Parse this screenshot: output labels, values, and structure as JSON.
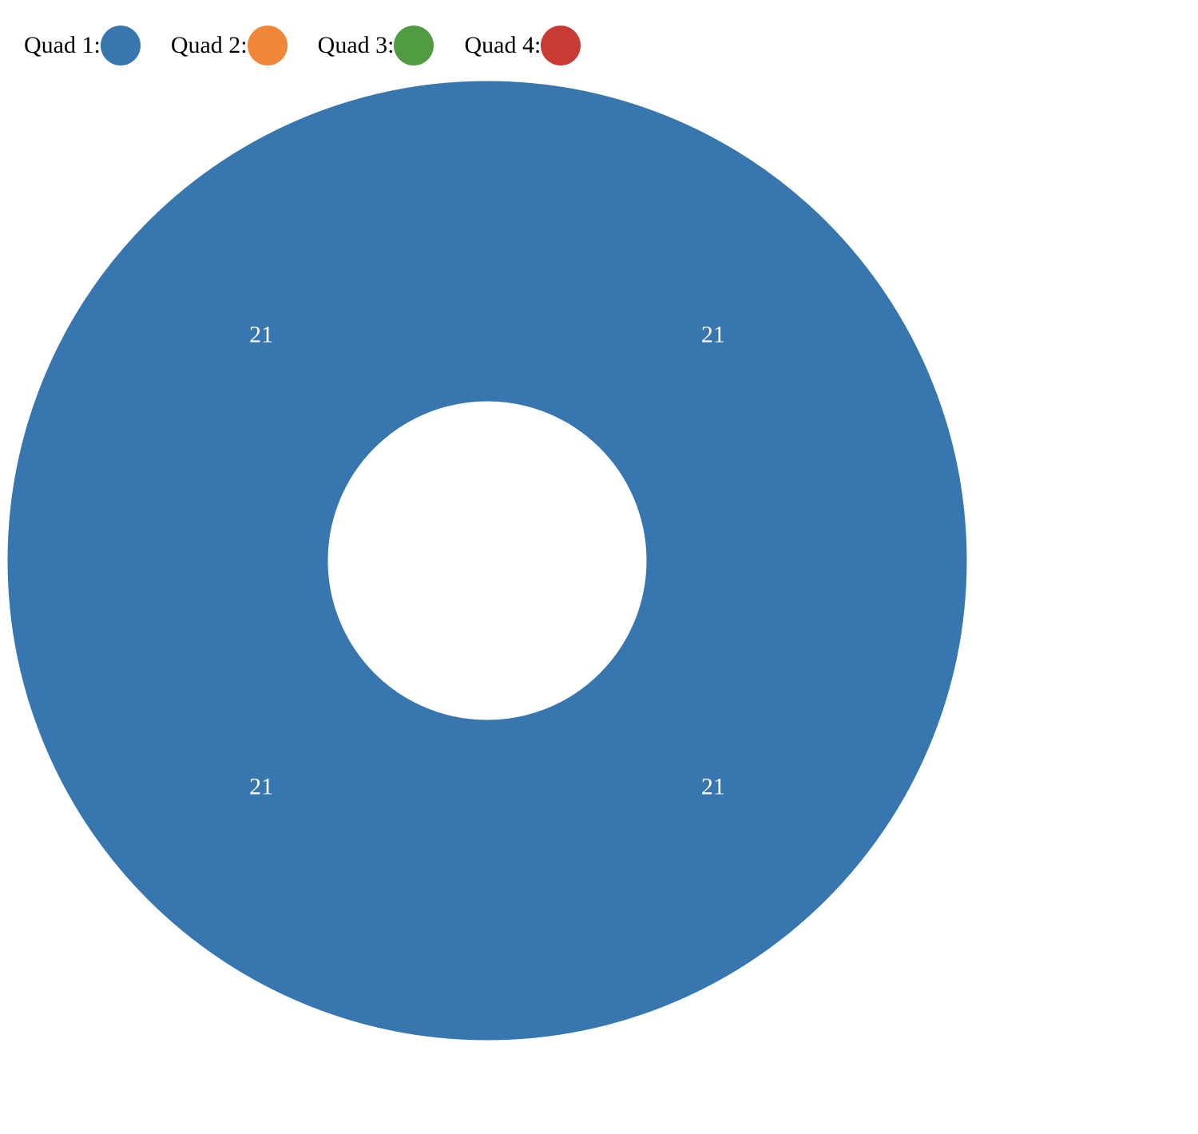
{
  "chart_data": {
    "type": "pie",
    "variant": "donut",
    "legend": [
      {
        "label": "Quad 1:",
        "color": "#3776ae"
      },
      {
        "label": "Quad 2:",
        "color": "#f0863a"
      },
      {
        "label": "Quad 3:",
        "color": "#519b41"
      },
      {
        "label": "Quad 4:",
        "color": "#c73b34"
      }
    ],
    "legend_position": "top-left",
    "slices": [
      {
        "value": 21,
        "label": "21",
        "color": "#3776ae"
      },
      {
        "value": 21,
        "label": "21",
        "color": "#3776ae"
      },
      {
        "value": 21,
        "label": "21",
        "color": "#3776ae"
      },
      {
        "value": 21,
        "label": "21",
        "color": "#3776ae"
      }
    ]
  }
}
